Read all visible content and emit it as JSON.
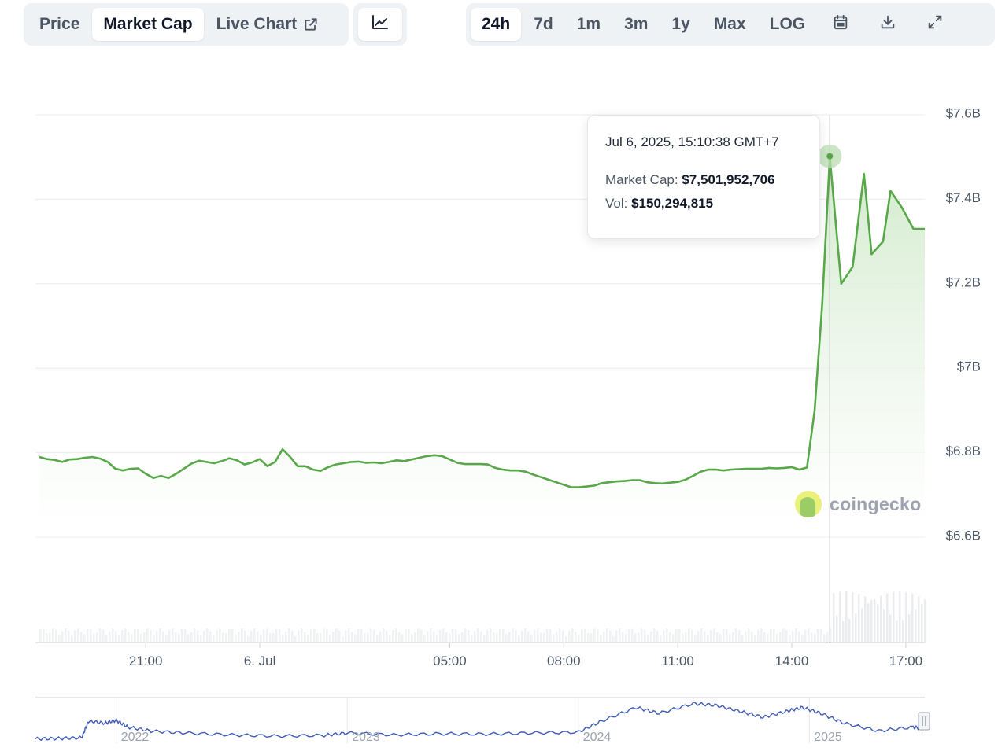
{
  "toolbar": {
    "tabs": [
      {
        "label": "Price",
        "active": false
      },
      {
        "label": "Market Cap",
        "active": true
      },
      {
        "label": "Live Chart",
        "active": false,
        "icon": "external-link-icon"
      }
    ],
    "chart_type_icon": "line-chart-icon",
    "ranges": [
      {
        "label": "24h",
        "active": true
      },
      {
        "label": "7d",
        "active": false
      },
      {
        "label": "1m",
        "active": false
      },
      {
        "label": "3m",
        "active": false
      },
      {
        "label": "1y",
        "active": false
      },
      {
        "label": "Max",
        "active": false
      },
      {
        "label": "LOG",
        "active": false
      }
    ],
    "tool_icons": [
      "calendar-icon",
      "download-icon",
      "fullscreen-icon"
    ]
  },
  "tooltip": {
    "date": "Jul 6, 2025, 15:10:38 GMT+7",
    "market_cap_label": "Market Cap:",
    "market_cap_value": "$7,501,952,706",
    "vol_label": "Vol:",
    "vol_value": "$150,294,815"
  },
  "watermark": "coingecko",
  "colors": {
    "line": "#58a84a",
    "fill": "#d6edd2",
    "navigator": "#3f5bb5",
    "grid": "#ececec"
  },
  "chart_data": {
    "type": "area",
    "title": "",
    "xlabel": "",
    "ylabel": "",
    "y_tick_labels": [
      "$7.6B",
      "$7.4B",
      "$7.2B",
      "$7B",
      "$6.8B",
      "$6.6B"
    ],
    "y_ticks": [
      7.6,
      7.4,
      7.2,
      7.0,
      6.8,
      6.6
    ],
    "ylim": [
      6.35,
      7.6
    ],
    "x_tick_labels": [
      "21:00",
      "6. Jul",
      "05:00",
      "08:00",
      "11:00",
      "14:00",
      "17:00"
    ],
    "x_ticks": [
      21,
      24,
      29,
      32,
      35,
      38,
      41
    ],
    "xlim": [
      18.2,
      41.5
    ],
    "x_unit": "hours since 5 Jul 00:00 (GMT+7)",
    "grid": true,
    "series": [
      {
        "name": "Market Cap",
        "unit": "billion USD",
        "points": [
          [
            18.2,
            6.79
          ],
          [
            18.4,
            6.785
          ],
          [
            18.6,
            6.783
          ],
          [
            18.8,
            6.778
          ],
          [
            19.0,
            6.784
          ],
          [
            19.2,
            6.785
          ],
          [
            19.4,
            6.788
          ],
          [
            19.6,
            6.79
          ],
          [
            19.8,
            6.786
          ],
          [
            20.0,
            6.778
          ],
          [
            20.2,
            6.762
          ],
          [
            20.4,
            6.758
          ],
          [
            20.6,
            6.762
          ],
          [
            20.8,
            6.763
          ],
          [
            21.0,
            6.75
          ],
          [
            21.2,
            6.74
          ],
          [
            21.4,
            6.745
          ],
          [
            21.6,
            6.74
          ],
          [
            21.8,
            6.75
          ],
          [
            22.0,
            6.762
          ],
          [
            22.2,
            6.774
          ],
          [
            22.4,
            6.781
          ],
          [
            22.6,
            6.778
          ],
          [
            22.8,
            6.775
          ],
          [
            23.0,
            6.78
          ],
          [
            23.2,
            6.787
          ],
          [
            23.4,
            6.782
          ],
          [
            23.6,
            6.772
          ],
          [
            23.8,
            6.777
          ],
          [
            24.0,
            6.785
          ],
          [
            24.2,
            6.768
          ],
          [
            24.4,
            6.778
          ],
          [
            24.6,
            6.808
          ],
          [
            24.8,
            6.79
          ],
          [
            25.0,
            6.768
          ],
          [
            25.2,
            6.768
          ],
          [
            25.4,
            6.76
          ],
          [
            25.6,
            6.757
          ],
          [
            25.8,
            6.766
          ],
          [
            26.0,
            6.772
          ],
          [
            26.2,
            6.775
          ],
          [
            26.4,
            6.778
          ],
          [
            26.6,
            6.779
          ],
          [
            26.8,
            6.776
          ],
          [
            27.0,
            6.777
          ],
          [
            27.2,
            6.775
          ],
          [
            27.4,
            6.778
          ],
          [
            27.6,
            6.782
          ],
          [
            27.8,
            6.78
          ],
          [
            28.0,
            6.784
          ],
          [
            28.2,
            6.788
          ],
          [
            28.4,
            6.792
          ],
          [
            28.6,
            6.794
          ],
          [
            28.8,
            6.792
          ],
          [
            29.0,
            6.784
          ],
          [
            29.2,
            6.776
          ],
          [
            29.4,
            6.773
          ],
          [
            29.6,
            6.773
          ],
          [
            29.8,
            6.773
          ],
          [
            30.0,
            6.772
          ],
          [
            30.2,
            6.764
          ],
          [
            30.4,
            6.76
          ],
          [
            30.6,
            6.758
          ],
          [
            30.8,
            6.758
          ],
          [
            31.0,
            6.755
          ],
          [
            31.2,
            6.748
          ],
          [
            31.4,
            6.742
          ],
          [
            31.6,
            6.736
          ],
          [
            31.8,
            6.73
          ],
          [
            32.0,
            6.724
          ],
          [
            32.2,
            6.718
          ],
          [
            32.4,
            6.718
          ],
          [
            32.6,
            6.72
          ],
          [
            32.8,
            6.722
          ],
          [
            33.0,
            6.728
          ],
          [
            33.2,
            6.73
          ],
          [
            33.4,
            6.732
          ],
          [
            33.6,
            6.733
          ],
          [
            33.8,
            6.735
          ],
          [
            34.0,
            6.735
          ],
          [
            34.2,
            6.73
          ],
          [
            34.4,
            6.728
          ],
          [
            34.6,
            6.727
          ],
          [
            34.8,
            6.729
          ],
          [
            35.0,
            6.731
          ],
          [
            35.2,
            6.736
          ],
          [
            35.4,
            6.745
          ],
          [
            35.6,
            6.755
          ],
          [
            35.8,
            6.76
          ],
          [
            36.0,
            6.76
          ],
          [
            36.2,
            6.758
          ],
          [
            36.4,
            6.76
          ],
          [
            36.6,
            6.761
          ],
          [
            36.8,
            6.762
          ],
          [
            37.0,
            6.762
          ],
          [
            37.2,
            6.762
          ],
          [
            37.4,
            6.764
          ],
          [
            37.6,
            6.763
          ],
          [
            37.8,
            6.764
          ],
          [
            38.0,
            6.766
          ],
          [
            38.2,
            6.76
          ],
          [
            38.4,
            6.765
          ],
          [
            38.6,
            6.9
          ],
          [
            38.8,
            7.15
          ],
          [
            39.0,
            7.5
          ],
          [
            39.3,
            7.2
          ],
          [
            39.6,
            7.24
          ],
          [
            39.9,
            7.46
          ],
          [
            40.1,
            7.27
          ],
          [
            40.4,
            7.3
          ],
          [
            40.6,
            7.42
          ],
          [
            40.9,
            7.38
          ],
          [
            41.2,
            7.33
          ],
          [
            41.5,
            7.33
          ]
        ]
      }
    ],
    "highlight": {
      "x": 39.0,
      "y": 7.502,
      "label": "Jul 6, 2025, 15:10:38 GMT+7"
    },
    "navigator": {
      "type": "line",
      "x_tick_labels": [
        "2022",
        "2023",
        "2024",
        "2025"
      ],
      "x_ticks": [
        2022,
        2023,
        2024,
        2025
      ],
      "xlim": [
        2021.65,
        2025.5
      ],
      "ylim": [
        0,
        1
      ],
      "values": [
        [
          2021.65,
          0.05
        ],
        [
          2021.75,
          0.06
        ],
        [
          2021.85,
          0.08
        ],
        [
          2021.88,
          0.5
        ],
        [
          2021.95,
          0.45
        ],
        [
          2022.0,
          0.52
        ],
        [
          2022.05,
          0.35
        ],
        [
          2022.15,
          0.25
        ],
        [
          2022.3,
          0.2
        ],
        [
          2022.5,
          0.15
        ],
        [
          2022.7,
          0.12
        ],
        [
          2022.9,
          0.14
        ],
        [
          2023.0,
          0.2
        ],
        [
          2023.2,
          0.15
        ],
        [
          2023.4,
          0.18
        ],
        [
          2023.6,
          0.17
        ],
        [
          2023.8,
          0.2
        ],
        [
          2024.0,
          0.22
        ],
        [
          2024.1,
          0.5
        ],
        [
          2024.25,
          0.85
        ],
        [
          2024.35,
          0.7
        ],
        [
          2024.5,
          0.95
        ],
        [
          2024.6,
          0.9
        ],
        [
          2024.7,
          0.75
        ],
        [
          2024.8,
          0.6
        ],
        [
          2024.9,
          0.75
        ],
        [
          2024.97,
          0.85
        ],
        [
          2025.05,
          0.7
        ],
        [
          2025.15,
          0.45
        ],
        [
          2025.3,
          0.25
        ],
        [
          2025.45,
          0.35
        ],
        [
          2025.5,
          0.3
        ]
      ]
    },
    "volume_bars": true
  }
}
